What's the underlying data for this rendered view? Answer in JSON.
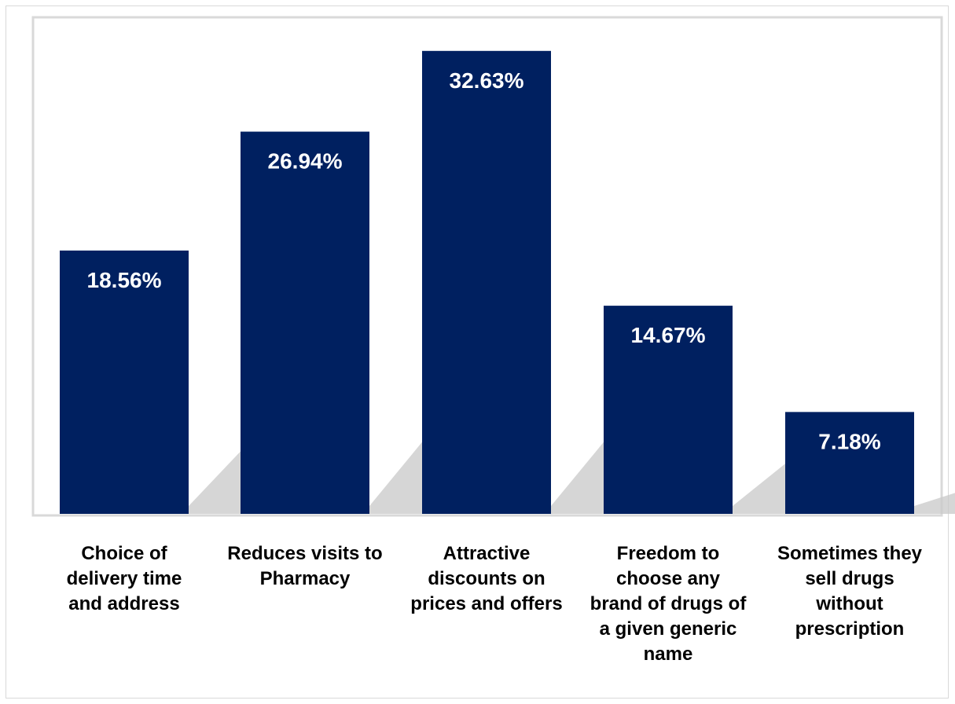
{
  "chart_data": {
    "type": "bar",
    "categories": [
      [
        "Choice of",
        "delivery time",
        "and address"
      ],
      [
        "Reduces visits to",
        "Pharmacy"
      ],
      [
        "Attractive",
        "discounts on",
        "prices and offers"
      ],
      [
        "Freedom to",
        "choose any",
        "brand of drugs of",
        "a given generic",
        "name"
      ],
      [
        "Sometimes they",
        "sell drugs",
        "without",
        "prescription"
      ]
    ],
    "values": [
      18.56,
      26.94,
      32.63,
      14.67,
      7.18
    ],
    "data_labels": [
      "18.56%",
      "26.94%",
      "32.63%",
      "14.67%",
      "7.18%"
    ],
    "ylim": [
      0,
      35
    ],
    "grid": false,
    "legend": "none",
    "colors": {
      "bar": "#002060",
      "label": "#ffffff",
      "shadow": "#c8c8c8",
      "plot_border": "#d9d9d9"
    }
  }
}
